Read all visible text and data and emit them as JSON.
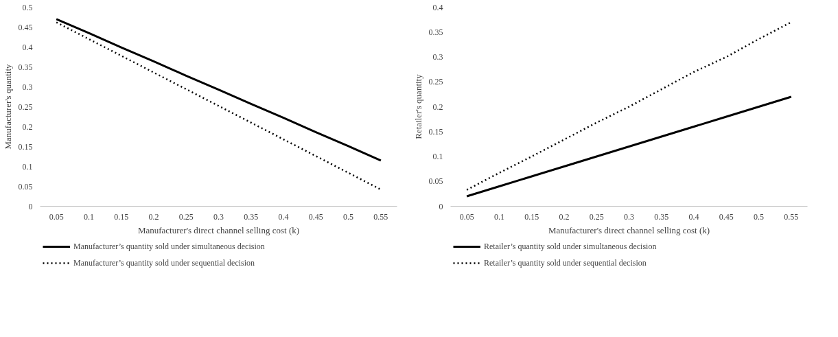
{
  "chart_data": [
    {
      "type": "line",
      "xlabel": "Manufacturer's direct channel selling cost (k)",
      "ylabel": "Manufacturer's quantity",
      "categories": [
        "0.05",
        "0.1",
        "0.15",
        "0.2",
        "0.25",
        "0.3",
        "0.35",
        "0.4",
        "0.45",
        "0.5",
        "0.55"
      ],
      "ylim": [
        0,
        0.5
      ],
      "yticks": [
        0,
        0.05,
        0.1,
        0.15,
        0.2,
        0.25,
        0.3,
        0.35,
        0.4,
        0.45,
        0.5
      ],
      "grid": false,
      "legend": "bottom",
      "series": [
        {
          "name": "Manufacturer’s quantity sold under simultaneous decision",
          "color": "#000000",
          "line_style": "solid",
          "values": [
            0.47,
            0.435,
            0.399,
            0.364,
            0.328,
            0.293,
            0.257,
            0.222,
            0.186,
            0.151,
            0.115
          ]
        },
        {
          "name": "Manufacturer’s quantity sold under sequential decision",
          "color": "#000000",
          "line_style": "dotted",
          "values": [
            0.462,
            0.42,
            0.378,
            0.336,
            0.294,
            0.252,
            0.21,
            0.168,
            0.126,
            0.084,
            0.042
          ]
        }
      ]
    },
    {
      "type": "line",
      "xlabel": "Manufacturer's direct channel selling cost (k)",
      "ylabel": "Retailer's quantity",
      "categories": [
        "0.05",
        "0.1",
        "0.15",
        "0.2",
        "0.25",
        "0.3",
        "0.35",
        "0.4",
        "0.45",
        "0.5",
        "0.55"
      ],
      "ylim": [
        0,
        0.4
      ],
      "yticks": [
        0,
        0.05,
        0.1,
        0.15,
        0.2,
        0.25,
        0.3,
        0.35,
        0.4
      ],
      "grid": false,
      "legend": "bottom",
      "series": [
        {
          "name": "Retailer’s quantity sold under simultaneous decision",
          "color": "#000000",
          "line_style": "solid",
          "values": [
            0.02,
            0.04,
            0.06,
            0.08,
            0.1,
            0.12,
            0.14,
            0.16,
            0.18,
            0.2,
            0.22
          ]
        },
        {
          "name": "Retailer’s quantity sold under sequential decision",
          "color": "#000000",
          "line_style": "dotted",
          "values": [
            0.033,
            0.067,
            0.1,
            0.134,
            0.168,
            0.2,
            0.235,
            0.27,
            0.3,
            0.336,
            0.37
          ]
        }
      ]
    }
  ]
}
